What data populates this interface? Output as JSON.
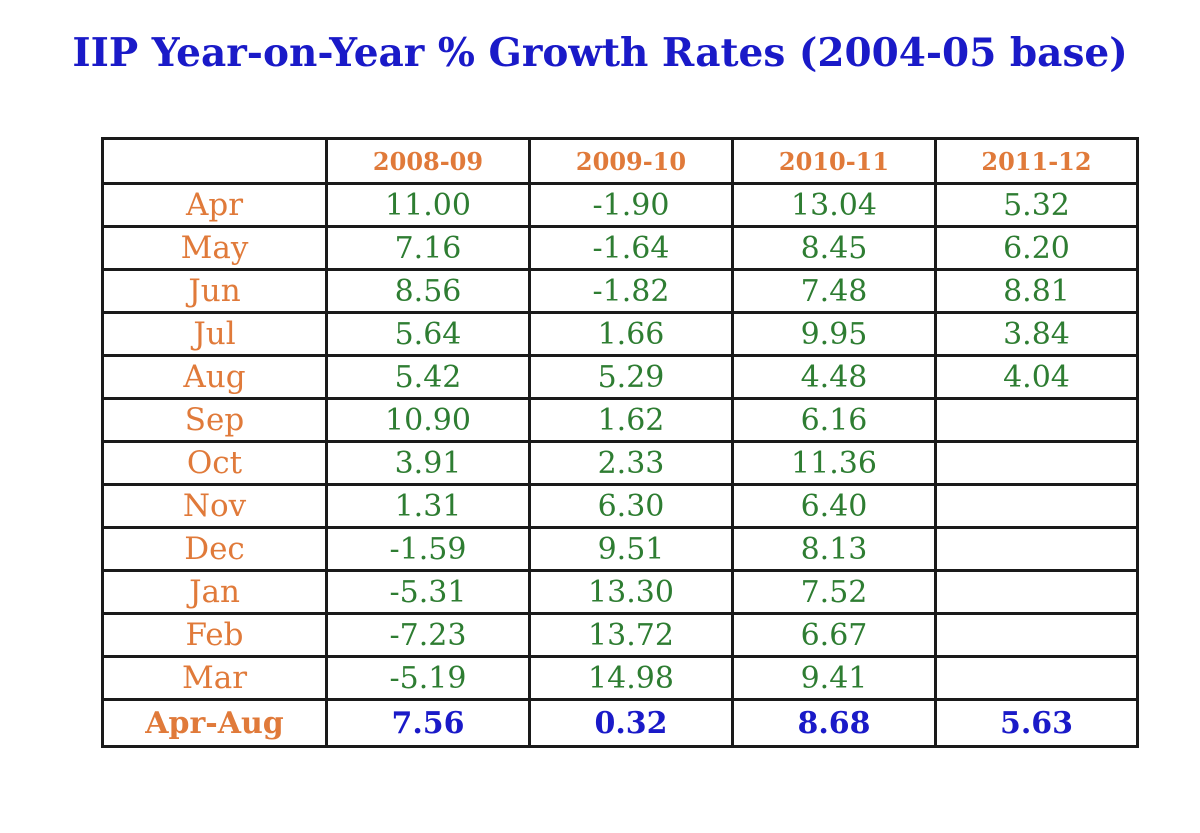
{
  "colors": {
    "title": "#1a1ac8",
    "header_text": "#e07a3a",
    "month_text": "#e07a3a",
    "value_text": "#2e7d32",
    "total_value_text": "#1a1ac8",
    "border": "#1a1a1a"
  },
  "chart_data": {
    "type": "table",
    "title": "IIP Year-on-Year % Growth Rates (2004-05 base)",
    "columns": [
      "",
      "2008-09",
      "2009-10",
      "2010-11",
      "2011-12"
    ],
    "rows": [
      {
        "label": "Apr",
        "values": [
          "11.00",
          "-1.90",
          "13.04",
          "5.32"
        ]
      },
      {
        "label": "May",
        "values": [
          "7.16",
          "-1.64",
          "8.45",
          "6.20"
        ]
      },
      {
        "label": "Jun",
        "values": [
          "8.56",
          "-1.82",
          "7.48",
          "8.81"
        ]
      },
      {
        "label": "Jul",
        "values": [
          "5.64",
          "1.66",
          "9.95",
          "3.84"
        ]
      },
      {
        "label": "Aug",
        "values": [
          "5.42",
          "5.29",
          "4.48",
          "4.04"
        ]
      },
      {
        "label": "Sep",
        "values": [
          "10.90",
          "1.62",
          "6.16",
          ""
        ]
      },
      {
        "label": "Oct",
        "values": [
          "3.91",
          "2.33",
          "11.36",
          ""
        ]
      },
      {
        "label": "Nov",
        "values": [
          "1.31",
          "6.30",
          "6.40",
          ""
        ]
      },
      {
        "label": "Dec",
        "values": [
          "-1.59",
          "9.51",
          "8.13",
          ""
        ]
      },
      {
        "label": "Jan",
        "values": [
          "-5.31",
          "13.30",
          "7.52",
          ""
        ]
      },
      {
        "label": "Feb",
        "values": [
          "-7.23",
          "13.72",
          "6.67",
          ""
        ]
      },
      {
        "label": "Mar",
        "values": [
          "-5.19",
          "14.98",
          "9.41",
          ""
        ]
      }
    ],
    "total": {
      "label": "Apr-Aug",
      "values": [
        "7.56",
        "0.32",
        "8.68",
        "5.63"
      ]
    }
  }
}
